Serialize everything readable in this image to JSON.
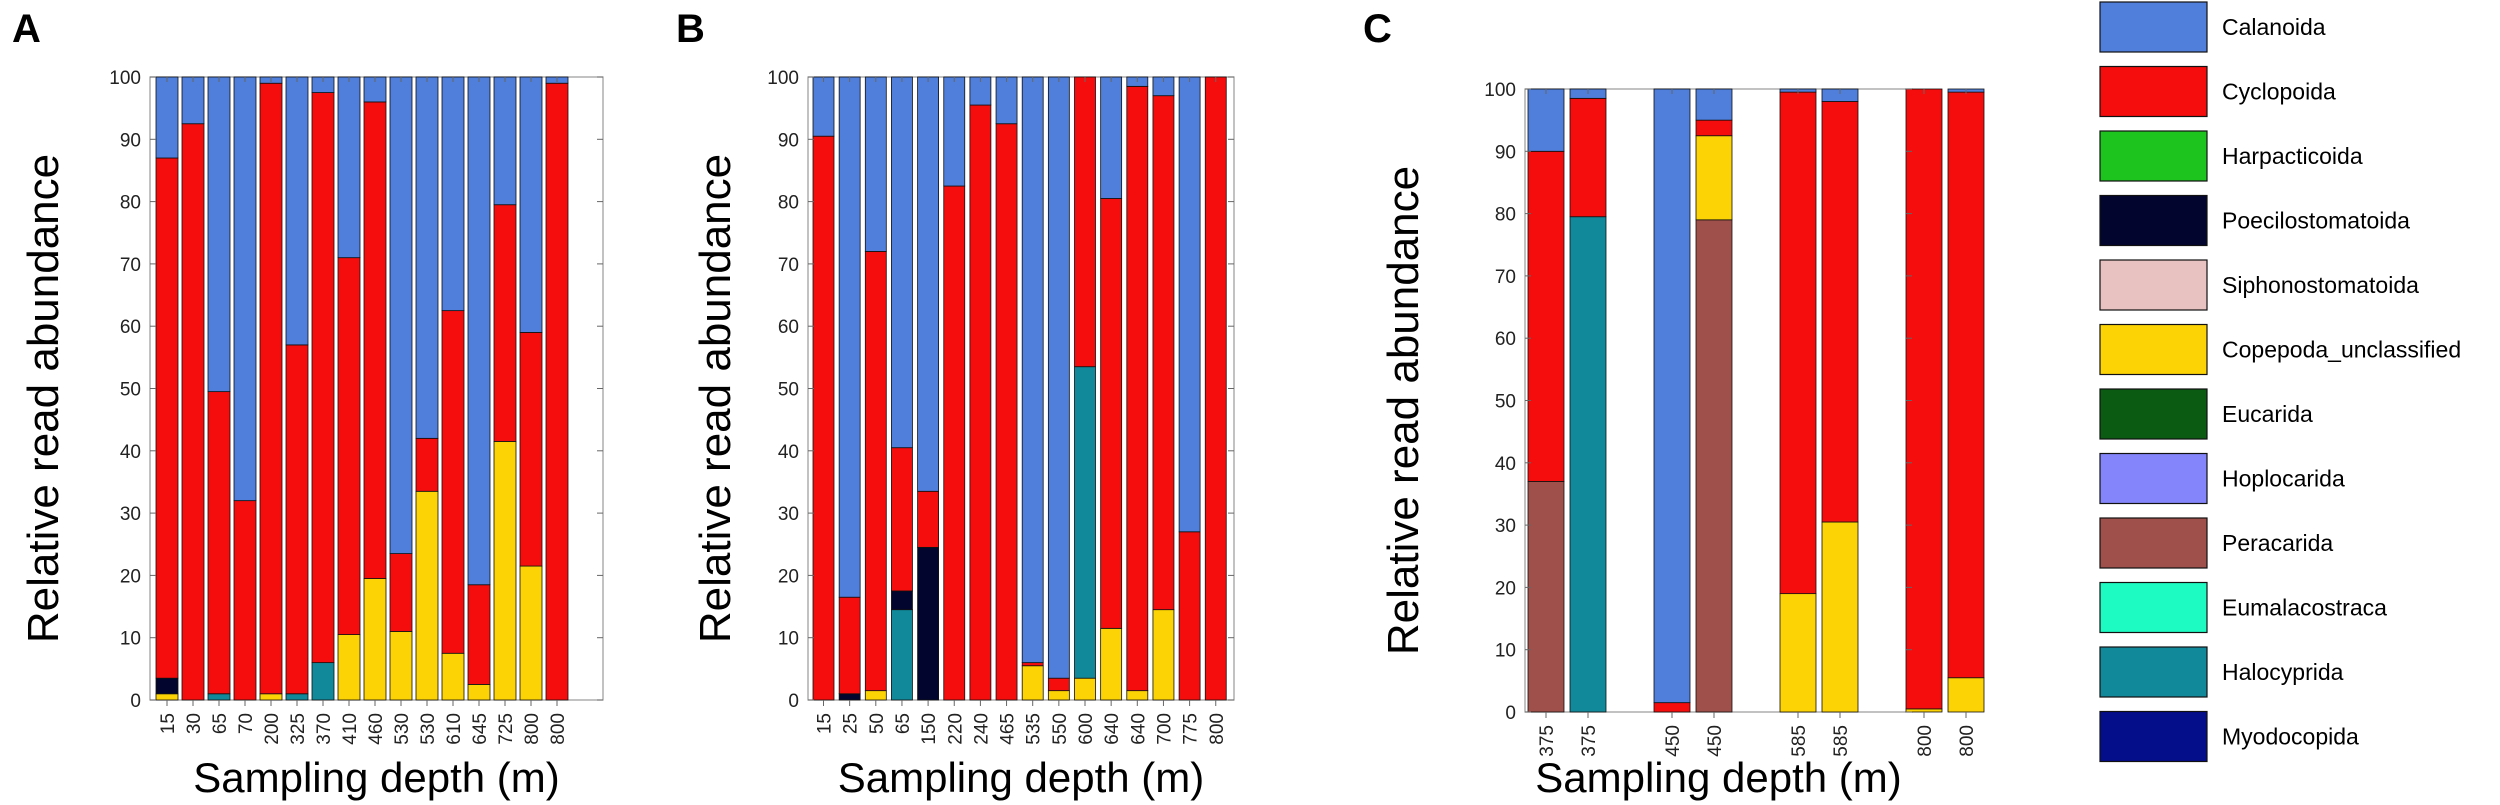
{
  "colors": {
    "Calanoida": "#4f7fdb",
    "Cyclopoida": "#f50d0d",
    "Harpacticoida": "#1ec41e",
    "Poecilostomatoida": "#02052e",
    "Siphonostomatoida": "#e8c2c0",
    "Copepoda_unclassified": "#fcd305",
    "Eucarida": "#0b5c12",
    "Hoplocarida": "#8585fb",
    "Peracarida": "#a0504a",
    "Eumalacostraca": "#1dfbc2",
    "Halocyprida": "#12899a",
    "Myodocopida": "#040d8a"
  },
  "legend": {
    "items": [
      "Calanoida",
      "Cyclopoida",
      "Harpacticoida",
      "Poecilostomatoida",
      "Siphonostomatoida",
      "Copepoda_unclassified",
      "Eucarida",
      "Hoplocarida",
      "Peracarida",
      "Eumalacostraca",
      "Halocyprida",
      "Myodocopida"
    ]
  },
  "chart_data": [
    {
      "panel": "A",
      "type": "bar",
      "stacked": true,
      "title": "",
      "xlabel": "Sampling depth (m)",
      "ylabel": "Relative read abundance",
      "ylim": [
        0,
        100
      ],
      "yticks": [
        0,
        10,
        20,
        30,
        40,
        50,
        60,
        70,
        80,
        90,
        100
      ],
      "categories": [
        "15",
        "30",
        "65",
        "70",
        "200",
        "325",
        "370",
        "410",
        "460",
        "530",
        "530",
        "610",
        "645",
        "725",
        "800",
        "800"
      ],
      "series": [
        {
          "name": "Copepoda_unclassified",
          "values": [
            1,
            0,
            0,
            0,
            1,
            0,
            0,
            10.5,
            19.5,
            11,
            33.5,
            7.5,
            2.5,
            41.5,
            21.5,
            0
          ]
        },
        {
          "name": "Halocyprida",
          "values": [
            0,
            0,
            1,
            0,
            0,
            1,
            6,
            0,
            0,
            0,
            0,
            0,
            0,
            0,
            0,
            0
          ]
        },
        {
          "name": "Poecilostomatoida",
          "values": [
            2.5,
            0,
            0,
            0,
            0,
            0,
            0,
            0,
            0,
            0,
            0,
            0,
            0,
            0,
            0,
            0
          ]
        },
        {
          "name": "Cyclopoida",
          "values": [
            83.5,
            92.5,
            48.5,
            32,
            98,
            56,
            91.5,
            60.5,
            76.5,
            12.5,
            8.5,
            55,
            16,
            38,
            37.5,
            99
          ]
        },
        {
          "name": "Calanoida",
          "values": [
            13,
            7.5,
            50.5,
            68,
            1,
            43,
            2.5,
            29,
            4,
            76.5,
            58,
            37.5,
            81.5,
            20.5,
            41,
            1
          ]
        }
      ]
    },
    {
      "panel": "B",
      "type": "bar",
      "stacked": true,
      "title": "",
      "xlabel": "Sampling depth (m)",
      "ylabel": "Relative read abundance",
      "ylim": [
        0,
        100
      ],
      "yticks": [
        0,
        10,
        20,
        30,
        40,
        50,
        60,
        70,
        80,
        90,
        100
      ],
      "categories": [
        "15",
        "25",
        "50",
        "65",
        "150",
        "220",
        "240",
        "465",
        "535",
        "550",
        "600",
        "640",
        "640",
        "700",
        "775",
        "800"
      ],
      "series": [
        {
          "name": "Copepoda_unclassified",
          "values": [
            0,
            0,
            1.5,
            0,
            0,
            0,
            0,
            0,
            5.5,
            1.5,
            3.5,
            11.5,
            1.5,
            14.5,
            0,
            0
          ]
        },
        {
          "name": "Halocyprida",
          "values": [
            0,
            0,
            0,
            14.5,
            0,
            0,
            0,
            0,
            0,
            0,
            50,
            0,
            0,
            0,
            0,
            0
          ]
        },
        {
          "name": "Poecilostomatoida",
          "values": [
            0,
            1,
            0,
            3,
            24.5,
            0,
            0,
            0,
            0,
            0,
            0,
            0,
            0,
            0,
            0,
            0
          ]
        },
        {
          "name": "Cyclopoida",
          "values": [
            90.5,
            15.5,
            70.5,
            23,
            9,
            82.5,
            95.5,
            92.5,
            0.5,
            2,
            46.5,
            69,
            97,
            82.5,
            27,
            100
          ]
        },
        {
          "name": "Calanoida",
          "values": [
            9.5,
            83.5,
            28,
            59.5,
            66.5,
            17.5,
            4.5,
            7.5,
            94,
            96.5,
            0,
            19.5,
            1.5,
            3,
            73,
            0
          ]
        }
      ]
    },
    {
      "panel": "C",
      "type": "bar",
      "stacked": true,
      "title": "",
      "xlabel": "Sampling depth (m)",
      "ylabel": "Relative read abundance",
      "ylim": [
        0,
        100
      ],
      "yticks": [
        0,
        10,
        20,
        30,
        40,
        50,
        60,
        70,
        80,
        90,
        100
      ],
      "categories": [
        "375",
        "375",
        "450",
        "450",
        "585",
        "585",
        "800",
        "800"
      ],
      "series": [
        {
          "name": "Peracarida",
          "values": [
            37,
            0,
            0,
            79,
            0,
            0,
            0,
            0
          ]
        },
        {
          "name": "Halocyprida",
          "values": [
            0,
            79.5,
            0,
            0,
            0,
            0,
            0,
            0
          ]
        },
        {
          "name": "Copepoda_unclassified",
          "values": [
            0,
            0,
            0,
            13.5,
            19,
            30.5,
            0.5,
            5.5
          ]
        },
        {
          "name": "Cyclopoida",
          "values": [
            53,
            19,
            1.5,
            2.5,
            80.5,
            67.5,
            99.5,
            94
          ]
        },
        {
          "name": "Calanoida",
          "values": [
            10,
            1.5,
            98.5,
            5,
            0.5,
            2,
            0,
            0.5
          ]
        }
      ]
    }
  ]
}
